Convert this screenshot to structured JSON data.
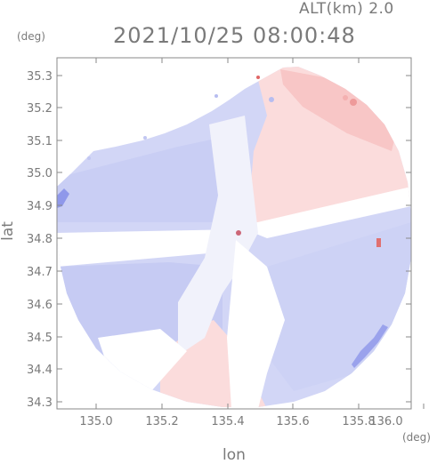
{
  "header": {
    "altitude_label": "ALT(km) 2.0",
    "timestamp": "2021/10/25 08:00:48"
  },
  "axes": {
    "y_unit": "(deg)",
    "x_unit": "(deg)",
    "x_label": "lon",
    "y_label": "lat",
    "x_ticks": [
      "135.0",
      "135.2",
      "135.4",
      "135.6",
      "135.8",
      "136.0"
    ],
    "y_ticks": [
      "35.3",
      "35.2",
      "35.1",
      "35.0",
      "34.9",
      "34.8",
      "34.7",
      "34.6",
      "34.5",
      "34.4",
      "34.3"
    ]
  },
  "colors": {
    "approaching": "#c8cdf5",
    "receding": "#fbd3d3",
    "strong_receding": "#f08080",
    "strong_approaching": "#7f8ae8",
    "frame": "#8a8a8a"
  }
}
